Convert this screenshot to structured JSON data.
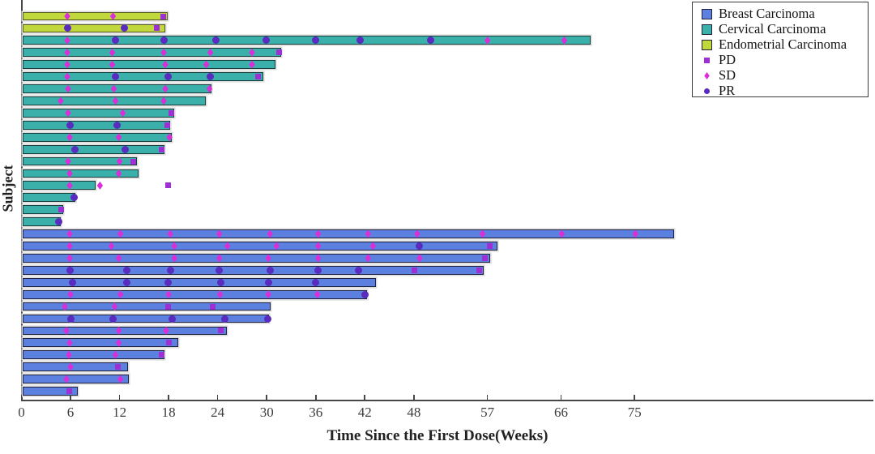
{
  "figure": {
    "xlabel": "Time Since the First Dose(Weeks)",
    "ylabel": "Subject",
    "xticks": [
      0,
      6,
      12,
      18,
      24,
      30,
      36,
      42,
      48,
      57,
      66,
      75
    ],
    "colors": {
      "breast": {
        "fill": "#5b80e0",
        "edge": "#20233f"
      },
      "cervical": {
        "fill": "#3bafa9",
        "edge": "#15403d"
      },
      "endometrial": {
        "fill": "#c0d83c",
        "edge": "#565a1e"
      },
      "PD": "#9d2fd4",
      "SD": "#d92ed9",
      "PR": "#5a2bbf",
      "axis": "#474747"
    },
    "legend": {
      "groups": [
        {
          "key": "breast",
          "label": "Breast Carcinoma"
        },
        {
          "key": "cervical",
          "label": "Cervical Carcinoma"
        },
        {
          "key": "endometrial",
          "label": "Endometrial Carcinoma"
        }
      ],
      "markers": [
        {
          "key": "PD",
          "label": "PD",
          "shape": "square"
        },
        {
          "key": "SD",
          "label": "SD",
          "shape": "diamond"
        },
        {
          "key": "PR",
          "label": "PR",
          "shape": "circle"
        }
      ]
    }
  },
  "chart_data": {
    "type": "bar",
    "orientation": "horizontal",
    "title": "",
    "xlabel": "Time Since the First Dose(Weeks)",
    "ylabel": "Subject",
    "x_unit": "weeks",
    "xlim": [
      0,
      102
    ],
    "grid": false,
    "legend_position": "top-right",
    "marker_legend": {
      "PD": "square",
      "SD": "diamond",
      "PR": "circle"
    },
    "bars": [
      {
        "group": "endometrial",
        "length": 17.8,
        "events": [
          {
            "type": "SD",
            "week": 5.6
          },
          {
            "type": "SD",
            "week": 11.2
          },
          {
            "type": "PD",
            "week": 17.3
          }
        ]
      },
      {
        "group": "endometrial",
        "length": 17.5,
        "events": [
          {
            "type": "PR",
            "week": 5.6
          },
          {
            "type": "PR",
            "week": 12.6
          },
          {
            "type": "PD",
            "week": 16.6
          }
        ]
      },
      {
        "group": "cervical",
        "length": 69.5,
        "events": [
          {
            "type": "SD",
            "week": 5.6
          },
          {
            "type": "PR",
            "week": 11.5
          },
          {
            "type": "PR",
            "week": 17.4
          },
          {
            "type": "PR",
            "week": 23.8
          },
          {
            "type": "PR",
            "week": 29.9
          },
          {
            "type": "PR",
            "week": 36.0
          },
          {
            "type": "PR",
            "week": 41.4
          },
          {
            "type": "PR",
            "week": 50.0
          },
          {
            "type": "SD",
            "week": 57.0
          },
          {
            "type": "SD",
            "week": 66.4
          }
        ]
      },
      {
        "group": "cervical",
        "length": 31.7,
        "events": [
          {
            "type": "SD",
            "week": 5.6
          },
          {
            "type": "SD",
            "week": 11.1
          },
          {
            "type": "SD",
            "week": 17.4
          },
          {
            "type": "SD",
            "week": 23.1
          },
          {
            "type": "SD",
            "week": 28.2
          },
          {
            "type": "PD",
            "week": 31.5
          }
        ]
      },
      {
        "group": "cervical",
        "length": 31.0,
        "events": [
          {
            "type": "SD",
            "week": 5.6
          },
          {
            "type": "SD",
            "week": 11.1
          },
          {
            "type": "SD",
            "week": 17.6
          },
          {
            "type": "SD",
            "week": 22.6
          },
          {
            "type": "SD",
            "week": 28.2
          }
        ]
      },
      {
        "group": "cervical",
        "length": 29.5,
        "events": [
          {
            "type": "SD",
            "week": 5.6
          },
          {
            "type": "PR",
            "week": 11.5
          },
          {
            "type": "PR",
            "week": 17.9
          },
          {
            "type": "PR",
            "week": 23.1
          },
          {
            "type": "PD",
            "week": 28.9
          }
        ]
      },
      {
        "group": "cervical",
        "length": 23.1,
        "events": [
          {
            "type": "SD",
            "week": 5.7
          },
          {
            "type": "SD",
            "week": 11.3
          },
          {
            "type": "SD",
            "week": 17.6
          },
          {
            "type": "SD",
            "week": 23.0
          }
        ]
      },
      {
        "group": "cervical",
        "length": 22.4,
        "events": [
          {
            "type": "SD",
            "week": 4.8
          },
          {
            "type": "SD",
            "week": 11.5
          },
          {
            "type": "SD",
            "week": 17.4
          }
        ]
      },
      {
        "group": "cervical",
        "length": 18.6,
        "events": [
          {
            "type": "SD",
            "week": 5.7
          },
          {
            "type": "SD",
            "week": 12.4
          },
          {
            "type": "PD",
            "week": 18.3
          }
        ]
      },
      {
        "group": "cervical",
        "length": 18.1,
        "events": [
          {
            "type": "PR",
            "week": 5.9
          },
          {
            "type": "PR",
            "week": 11.7
          },
          {
            "type": "PD",
            "week": 17.8
          }
        ]
      },
      {
        "group": "cervical",
        "length": 18.3,
        "events": [
          {
            "type": "SD",
            "week": 5.9
          },
          {
            "type": "SD",
            "week": 11.9
          },
          {
            "type": "SD",
            "week": 18.1
          }
        ]
      },
      {
        "group": "cervical",
        "length": 17.4,
        "events": [
          {
            "type": "PR",
            "week": 6.5
          },
          {
            "type": "PR",
            "week": 12.7
          },
          {
            "type": "PD",
            "week": 17.1
          }
        ]
      },
      {
        "group": "cervical",
        "length": 14.0,
        "events": [
          {
            "type": "SD",
            "week": 5.7
          },
          {
            "type": "SD",
            "week": 12.0
          },
          {
            "type": "PD",
            "week": 13.7
          }
        ]
      },
      {
        "group": "cervical",
        "length": 14.2,
        "events": [
          {
            "type": "SD",
            "week": 5.9
          },
          {
            "type": "SD",
            "week": 11.9
          }
        ]
      },
      {
        "group": "cervical",
        "length": 9.0,
        "events": [
          {
            "type": "SD",
            "week": 5.9
          },
          {
            "type": "SD",
            "week": 9.6
          },
          {
            "type": "PD",
            "week": 17.9
          }
        ]
      },
      {
        "group": "cervical",
        "length": 6.5,
        "events": [
          {
            "type": "PR",
            "week": 6.4
          }
        ]
      },
      {
        "group": "cervical",
        "length": 5.0,
        "events": [
          {
            "type": "PD",
            "week": 4.9
          }
        ]
      },
      {
        "group": "cervical",
        "length": 4.7,
        "events": [
          {
            "type": "PR",
            "week": 4.6
          }
        ]
      },
      {
        "group": "breast",
        "length": 79.7,
        "events": [
          {
            "type": "SD",
            "week": 5.9
          },
          {
            "type": "SD",
            "week": 12.1
          },
          {
            "type": "SD",
            "week": 18.2
          },
          {
            "type": "SD",
            "week": 24.2
          },
          {
            "type": "SD",
            "week": 30.4
          },
          {
            "type": "SD",
            "week": 36.3
          },
          {
            "type": "SD",
            "week": 42.4
          },
          {
            "type": "SD",
            "week": 48.4
          },
          {
            "type": "SD",
            "week": 56.4
          },
          {
            "type": "SD",
            "week": 66.1
          },
          {
            "type": "SD",
            "week": 75.1
          }
        ]
      },
      {
        "group": "breast",
        "length": 58.1,
        "events": [
          {
            "type": "SD",
            "week": 5.9
          },
          {
            "type": "SD",
            "week": 11.0
          },
          {
            "type": "SD",
            "week": 18.7
          },
          {
            "type": "SD",
            "week": 25.2
          },
          {
            "type": "SD",
            "week": 31.2
          },
          {
            "type": "SD",
            "week": 36.3
          },
          {
            "type": "SD",
            "week": 43.0
          },
          {
            "type": "PR",
            "week": 48.7
          },
          {
            "type": "PD",
            "week": 57.3
          }
        ]
      },
      {
        "group": "breast",
        "length": 57.2,
        "events": [
          {
            "type": "SD",
            "week": 5.9
          },
          {
            "type": "SD",
            "week": 11.9
          },
          {
            "type": "SD",
            "week": 18.7
          },
          {
            "type": "SD",
            "week": 24.2
          },
          {
            "type": "SD",
            "week": 30.2
          },
          {
            "type": "SD",
            "week": 36.3
          },
          {
            "type": "SD",
            "week": 42.4
          },
          {
            "type": "SD",
            "week": 48.7
          },
          {
            "type": "PD",
            "week": 56.7
          }
        ]
      },
      {
        "group": "breast",
        "length": 56.4,
        "events": [
          {
            "type": "PR",
            "week": 5.9
          },
          {
            "type": "PR",
            "week": 12.9
          },
          {
            "type": "PR",
            "week": 18.2
          },
          {
            "type": "PR",
            "week": 24.2
          },
          {
            "type": "PR",
            "week": 30.4
          },
          {
            "type": "PR",
            "week": 36.3
          },
          {
            "type": "PR",
            "week": 41.2
          },
          {
            "type": "PD",
            "week": 48.1
          },
          {
            "type": "PD",
            "week": 56.0
          }
        ]
      },
      {
        "group": "breast",
        "length": 43.3,
        "events": [
          {
            "type": "PR",
            "week": 6.2
          },
          {
            "type": "PR",
            "week": 12.9
          },
          {
            "type": "PR",
            "week": 17.9
          },
          {
            "type": "PR",
            "week": 24.4
          },
          {
            "type": "PR",
            "week": 30.2
          },
          {
            "type": "PR",
            "week": 36.0
          }
        ]
      },
      {
        "group": "breast",
        "length": 42.2,
        "events": [
          {
            "type": "SD",
            "week": 6.0
          },
          {
            "type": "SD",
            "week": 12.1
          },
          {
            "type": "SD",
            "week": 18.0
          },
          {
            "type": "SD",
            "week": 24.3
          },
          {
            "type": "SD",
            "week": 30.2
          },
          {
            "type": "SD",
            "week": 36.2
          },
          {
            "type": "PR",
            "week": 42.0
          }
        ]
      },
      {
        "group": "breast",
        "length": 30.4,
        "events": [
          {
            "type": "SD",
            "week": 5.3
          },
          {
            "type": "SD",
            "week": 11.4
          },
          {
            "type": "PD",
            "week": 17.9
          },
          {
            "type": "PD",
            "week": 23.4
          }
        ]
      },
      {
        "group": "breast",
        "length": 30.2,
        "events": [
          {
            "type": "PR",
            "week": 6.0
          },
          {
            "type": "PR",
            "week": 11.2
          },
          {
            "type": "PR",
            "week": 18.4
          },
          {
            "type": "PR",
            "week": 24.9
          },
          {
            "type": "PR",
            "week": 30.1
          }
        ]
      },
      {
        "group": "breast",
        "length": 25.0,
        "events": [
          {
            "type": "SD",
            "week": 5.5
          },
          {
            "type": "SD",
            "week": 11.9
          },
          {
            "type": "SD",
            "week": 17.7
          },
          {
            "type": "PD",
            "week": 24.4
          }
        ]
      },
      {
        "group": "breast",
        "length": 19.1,
        "events": [
          {
            "type": "SD",
            "week": 5.9
          },
          {
            "type": "SD",
            "week": 11.9
          },
          {
            "type": "PD",
            "week": 18.0
          }
        ]
      },
      {
        "group": "breast",
        "length": 17.4,
        "events": [
          {
            "type": "SD",
            "week": 5.8
          },
          {
            "type": "SD",
            "week": 11.5
          },
          {
            "type": "PD",
            "week": 17.1
          }
        ]
      },
      {
        "group": "breast",
        "length": 12.9,
        "events": [
          {
            "type": "SD",
            "week": 6.0
          },
          {
            "type": "PD",
            "week": 11.8
          }
        ]
      },
      {
        "group": "breast",
        "length": 13.0,
        "events": [
          {
            "type": "SD",
            "week": 5.5
          },
          {
            "type": "SD",
            "week": 12.1
          }
        ]
      },
      {
        "group": "breast",
        "length": 6.8,
        "events": [
          {
            "type": "PD",
            "week": 5.8
          }
        ]
      }
    ]
  }
}
